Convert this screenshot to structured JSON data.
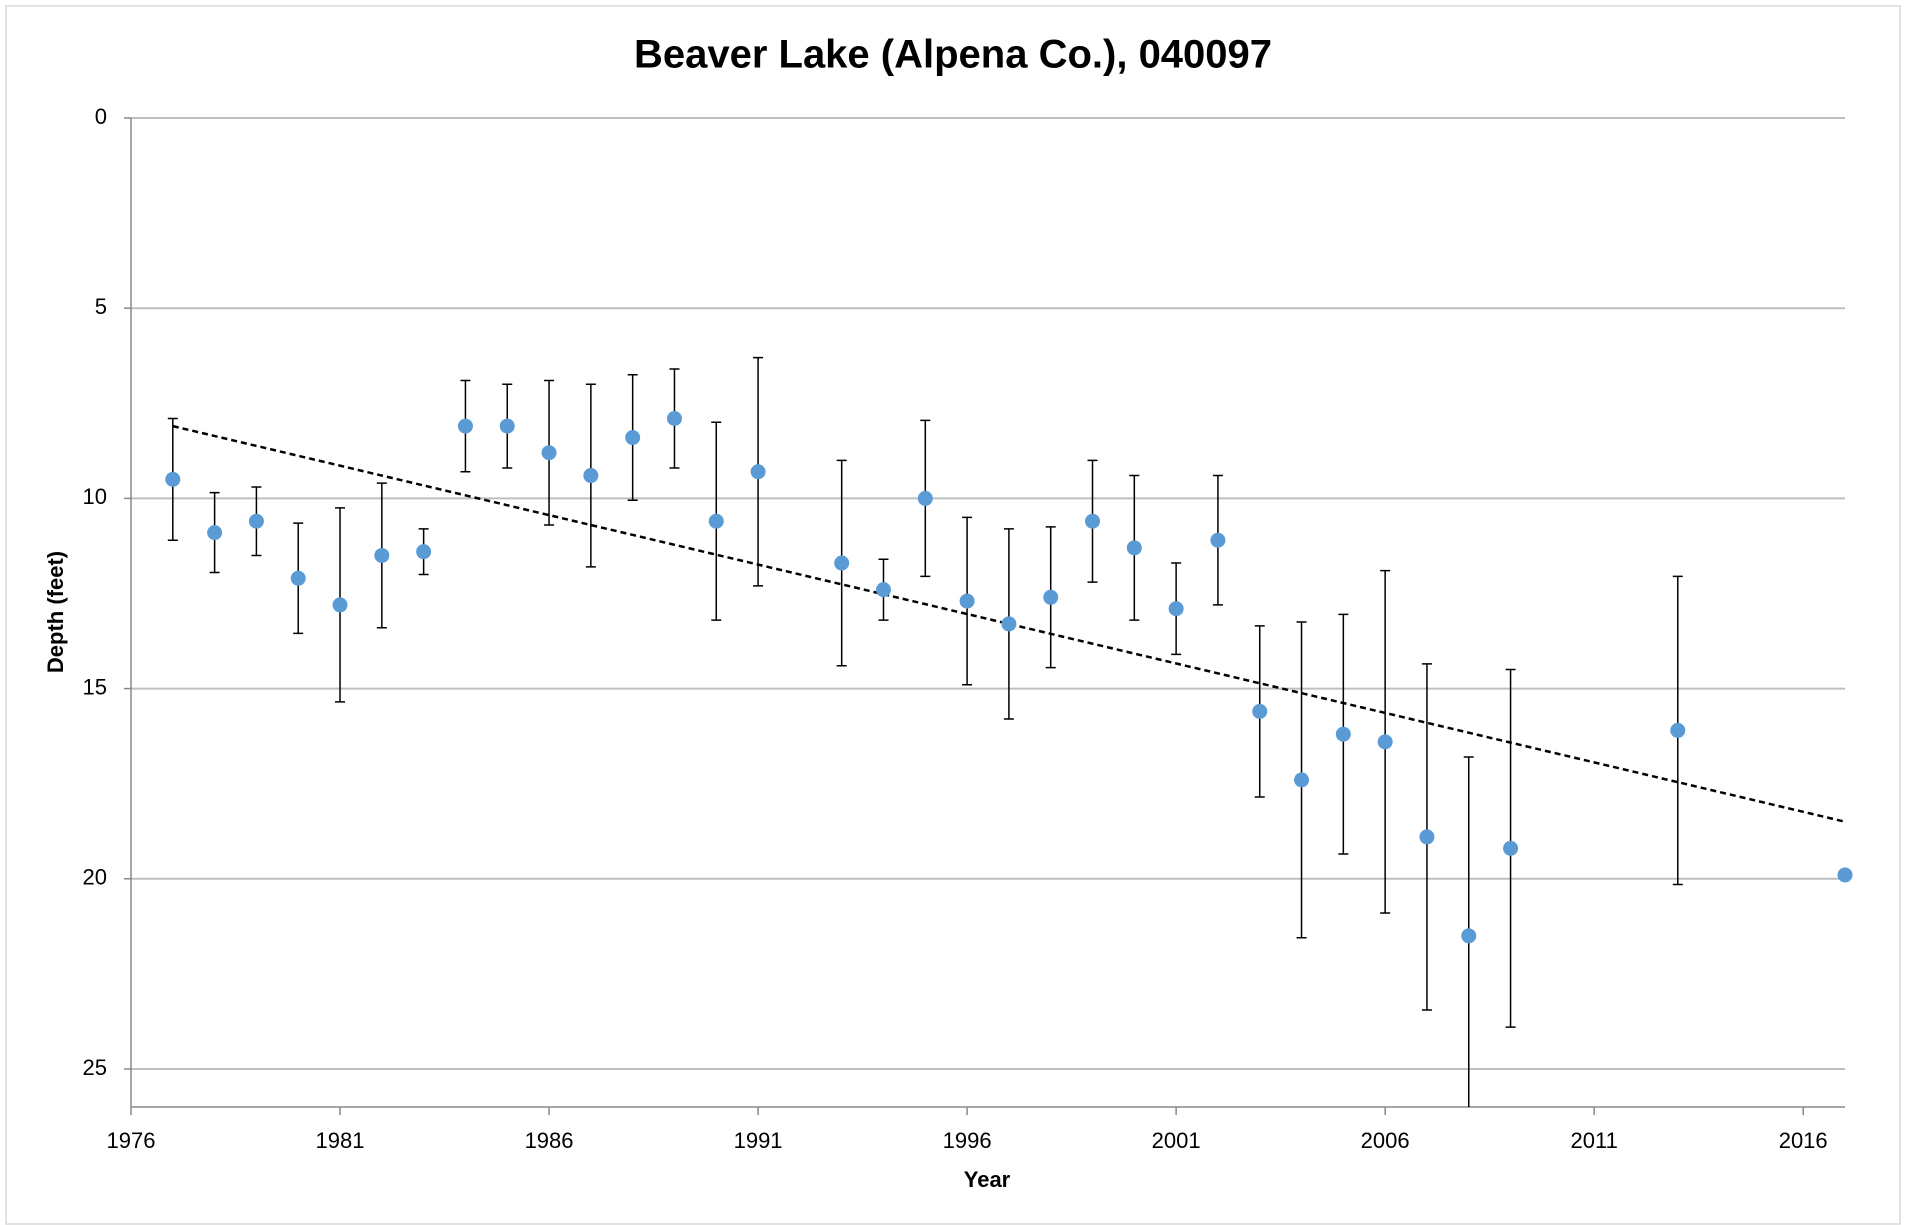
{
  "chart_data": {
    "type": "scatter",
    "title": "Beaver Lake (Alpena Co.), 040097",
    "x_label": "Year",
    "y_label": "Depth (feet)",
    "x": [
      1977,
      1978,
      1979,
      1980,
      1981,
      1982,
      1983,
      1984,
      1985,
      1986,
      1987,
      1988,
      1989,
      1990,
      1991,
      1993,
      1994,
      1995,
      1996,
      1997,
      1998,
      1999,
      2000,
      2001,
      2002,
      2003,
      2004,
      2005,
      2006,
      2007,
      2008,
      2009,
      2013,
      2017
    ],
    "values": [
      9.5,
      10.9,
      10.6,
      12.1,
      12.8,
      11.5,
      11.4,
      8.1,
      8.1,
      8.8,
      9.4,
      8.4,
      7.9,
      10.6,
      9.3,
      11.7,
      12.4,
      10.0,
      12.7,
      13.3,
      12.6,
      10.6,
      11.3,
      12.9,
      11.1,
      15.6,
      17.4,
      16.2,
      16.4,
      18.9,
      21.5,
      19.2,
      16.1,
      19.9
    ],
    "errors": [
      1.6,
      1.05,
      0.9,
      1.45,
      2.55,
      1.9,
      0.6,
      1.2,
      1.1,
      1.9,
      2.4,
      1.65,
      1.3,
      2.6,
      3.0,
      2.7,
      0.8,
      2.05,
      2.2,
      2.5,
      1.85,
      1.6,
      1.9,
      1.2,
      1.7,
      2.25,
      4.15,
      3.15,
      4.5,
      4.55,
      4.7,
      4.7,
      4.05,
      null
    ],
    "color": "#5b9bd5",
    "trendline": {
      "x": [
        1977,
        2017
      ],
      "y": [
        8.1,
        18.5
      ]
    },
    "xlim": [
      1976,
      2017
    ],
    "xticks": [
      1976,
      1981,
      1986,
      1991,
      1996,
      2001,
      2006,
      2011,
      2016
    ],
    "ylim": [
      0,
      26
    ],
    "yticks": [
      0,
      5,
      10,
      15,
      20,
      25
    ],
    "y_inverted": true,
    "grid": true
  }
}
